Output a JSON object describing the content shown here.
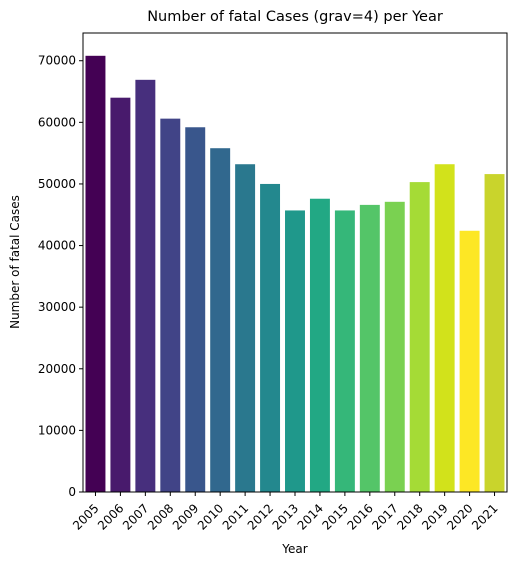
{
  "chart_data": {
    "type": "bar",
    "title": "Number of fatal Cases (grav=4) per Year",
    "xlabel": "Year",
    "ylabel": "Number of fatal Cases",
    "categories": [
      "2005",
      "2006",
      "2007",
      "2008",
      "2009",
      "2010",
      "2011",
      "2012",
      "2013",
      "2014",
      "2015",
      "2016",
      "2017",
      "2018",
      "2019",
      "2020",
      "2021"
    ],
    "values": [
      70800,
      64000,
      66900,
      60600,
      59200,
      55800,
      53200,
      50000,
      45700,
      47600,
      45700,
      46600,
      47100,
      50300,
      53200,
      42400,
      51600
    ],
    "ylim": [
      0,
      74500
    ],
    "yticks": [
      0,
      10000,
      20000,
      30000,
      40000,
      50000,
      60000,
      70000
    ],
    "ytick_labels": [
      "0",
      "10000",
      "20000",
      "30000",
      "40000",
      "50000",
      "60000",
      "70000"
    ],
    "colors": [
      "#440154",
      "#481a6c",
      "#472f7d",
      "#414487",
      "#39568c",
      "#31688e",
      "#2a788e",
      "#23888e",
      "#1f988b",
      "#22a884",
      "#35b779",
      "#54c568",
      "#7ad151",
      "#a5db36",
      "#d2e21b",
      "#fde725",
      "#c9d42c"
    ],
    "grid": false,
    "legend": "none"
  }
}
